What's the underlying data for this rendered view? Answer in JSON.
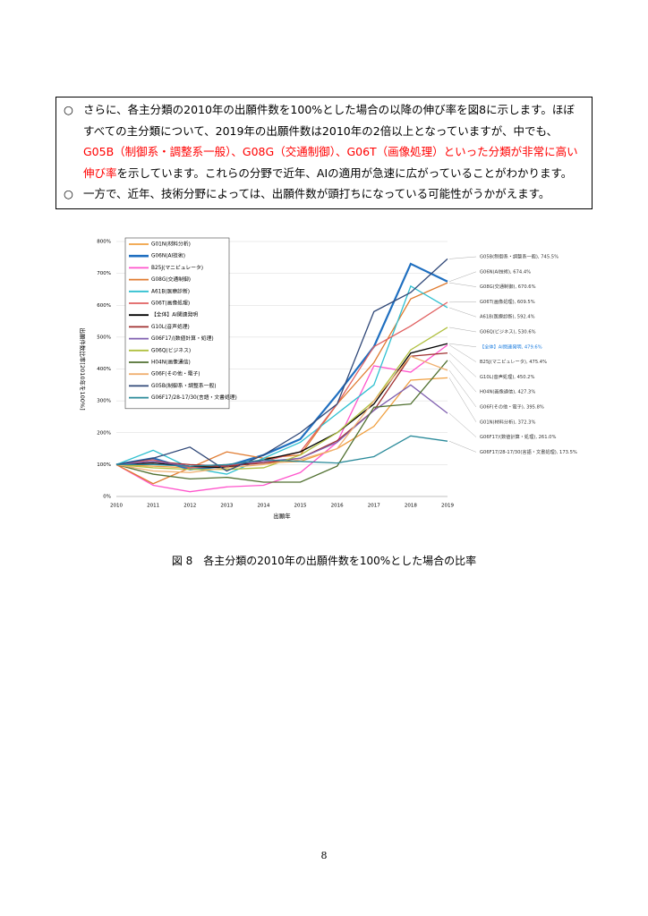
{
  "text_box": {
    "items": [
      {
        "bullet": "○",
        "segments": [
          {
            "text": "さらに、各主分類の2010年の出願件数を100%とした場合の以降の伸び率を図8に示します。ほぼすべての主分類について、2019年の出願件数は2010年の2倍以上となっていますが、中でも、",
            "color": "#000000"
          },
          {
            "text": "G05B（制御系・調整系一般）、G08G（交通制御）、G06T（画像処理）といった分類が非常に高い伸び率",
            "color": "#ff0000"
          },
          {
            "text": "を示しています。これらの分野で近年、AIの適用が急速に広がっていることがわかります。",
            "color": "#000000"
          }
        ]
      },
      {
        "bullet": "○",
        "segments": [
          {
            "text": "一方で、近年、技術分野によっては、出願件数が頭打ちになっている可能性がうかがえます。",
            "color": "#000000"
          }
        ]
      }
    ]
  },
  "chart_data": {
    "type": "line",
    "grid": true,
    "ylabel": "出願件数比率[2010年を100%]",
    "xlabel": "出願年",
    "categories": [
      "2010",
      "2011",
      "2012",
      "2013",
      "2014",
      "2015",
      "2016",
      "2017",
      "2018",
      "2019"
    ],
    "ylim": [
      0,
      800
    ],
    "yticks": [
      {
        "value": 0,
        "label": "0%"
      },
      {
        "value": 100,
        "label": "100%"
      },
      {
        "value": 200,
        "label": "200%"
      },
      {
        "value": 300,
        "label": "300%"
      },
      {
        "value": 400,
        "label": "400%"
      },
      {
        "value": 500,
        "label": "500%"
      },
      {
        "value": 600,
        "label": "600%"
      },
      {
        "value": 700,
        "label": "700%"
      },
      {
        "value": 800,
        "label": "800%"
      }
    ],
    "series": [
      {
        "name": "G01N(材料分析)",
        "color": "#f0a040",
        "values": [
          100,
          95,
          90,
          100,
          105,
          110,
          150,
          220,
          365,
          372.3
        ],
        "end_label": "G01N(材料分析), 372.3%"
      },
      {
        "name": "G06N(AI技術)",
        "color": "#1f6fc0",
        "width": 2.2,
        "values": [
          100,
          120,
          85,
          95,
          130,
          180,
          320,
          470,
          730,
          674.4
        ],
        "end_label": "G06N(AI技術), 674.4%"
      },
      {
        "name": "B25J(マニピュレータ)",
        "color": "#ff55cc",
        "values": [
          100,
          35,
          15,
          30,
          35,
          75,
          170,
          410,
          390,
          475.4
        ],
        "end_label": "B25J(マニピュレータ), 475.4%"
      },
      {
        "name": "G08G(交通制御)",
        "color": "#e07b30",
        "values": [
          100,
          40,
          90,
          140,
          120,
          130,
          290,
          420,
          620,
          670.6
        ],
        "end_label": "G08G(交通制御), 670.6%"
      },
      {
        "name": "A61B(医療診断)",
        "color": "#30c0d0",
        "values": [
          100,
          145,
          90,
          70,
          120,
          170,
          260,
          350,
          660,
          592.4
        ],
        "end_label": "A61B(医療診断), 592.4%"
      },
      {
        "name": "G06T(画像処理)",
        "color": "#e06060",
        "values": [
          100,
          115,
          90,
          95,
          110,
          140,
          290,
          470,
          535,
          609.5
        ],
        "end_label": "G06T(画像処理), 609.5%"
      },
      {
        "name": "【全体】AI関連発明",
        "color": "#000000",
        "values": [
          100,
          105,
          95,
          90,
          115,
          140,
          200,
          290,
          450,
          479.6
        ],
        "end_label": "【全体】AI関連発明, 479.6%",
        "end_label_color": "#1f7fe0"
      },
      {
        "name": "G10L(音声処理)",
        "color": "#a03030",
        "values": [
          100,
          110,
          100,
          95,
          105,
          120,
          175,
          270,
          440,
          450.2
        ],
        "end_label": "G10L(音声処理), 450.2%"
      },
      {
        "name": "G06F17/(数値計算・処理)",
        "color": "#8060b0",
        "values": [
          100,
          110,
          95,
          100,
          110,
          120,
          170,
          270,
          350,
          261.0
        ],
        "end_label": "G06F17/(数値計算・処理), 261.0%"
      },
      {
        "name": "G06Q(ビジネス)",
        "color": "#b0c040",
        "values": [
          100,
          90,
          85,
          85,
          90,
          130,
          200,
          300,
          460,
          530.6
        ],
        "end_label": "G06Q(ビジネス), 530.6%"
      },
      {
        "name": "H04N(画像通信)",
        "color": "#507030",
        "values": [
          100,
          70,
          55,
          60,
          45,
          45,
          95,
          280,
          290,
          427.3
        ],
        "end_label": "H04N(画像通信), 427.3%"
      },
      {
        "name": "G06F(その他・電子)",
        "color": "#f0b070",
        "values": [
          100,
          80,
          75,
          90,
          100,
          115,
          150,
          300,
          440,
          395.8
        ],
        "end_label": "G06F(その他・電子), 395.8%"
      },
      {
        "name": "G05B(制御系・調整系一般)",
        "color": "#304878",
        "values": [
          100,
          120,
          155,
          80,
          130,
          200,
          290,
          580,
          640,
          745.5
        ],
        "end_label": "G05B(制御系・調整系一般), 745.5%"
      },
      {
        "name": "G06F17/28-17/30(言語・文書処理)",
        "color": "#2a8a9a",
        "values": [
          100,
          100,
          95,
          100,
          115,
          110,
          105,
          125,
          190,
          173.5
        ],
        "end_label": "G06F17/28-17/30(言語・文書処理), 173.5%"
      }
    ]
  },
  "caption": "図 8　各主分類の2010年の出願件数を100%とした場合の比率",
  "page_number": "8"
}
